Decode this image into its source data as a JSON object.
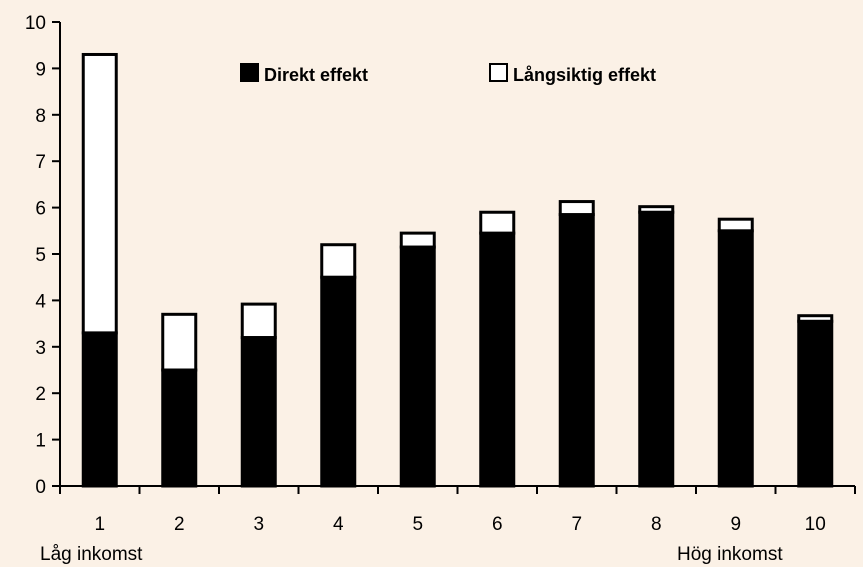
{
  "colors": {
    "background": "#fbf1e6",
    "direct": "#000000",
    "longterm": "#ffffff"
  },
  "chart_data": {
    "type": "bar",
    "stacked": true,
    "categories": [
      "1",
      "2",
      "3",
      "4",
      "5",
      "6",
      "7",
      "8",
      "9",
      "10"
    ],
    "series": [
      {
        "name": "Direkt effekt",
        "values": [
          3.3,
          2.5,
          3.2,
          4.5,
          5.15,
          5.45,
          5.85,
          5.9,
          5.5,
          3.55
        ]
      },
      {
        "name": "Långsiktig effekt",
        "values": [
          6.0,
          1.2,
          0.72,
          0.7,
          0.3,
          0.45,
          0.28,
          0.12,
          0.25,
          0.12
        ]
      }
    ],
    "ylim": [
      0,
      10
    ],
    "yticks": [
      "0",
      "1",
      "2",
      "3",
      "4",
      "5",
      "6",
      "7",
      "8",
      "9",
      "10"
    ],
    "x_end_labels": {
      "left": "Låg inkomst",
      "right": "Hög inkomst"
    },
    "legend_position": "top-center",
    "grid": false
  }
}
